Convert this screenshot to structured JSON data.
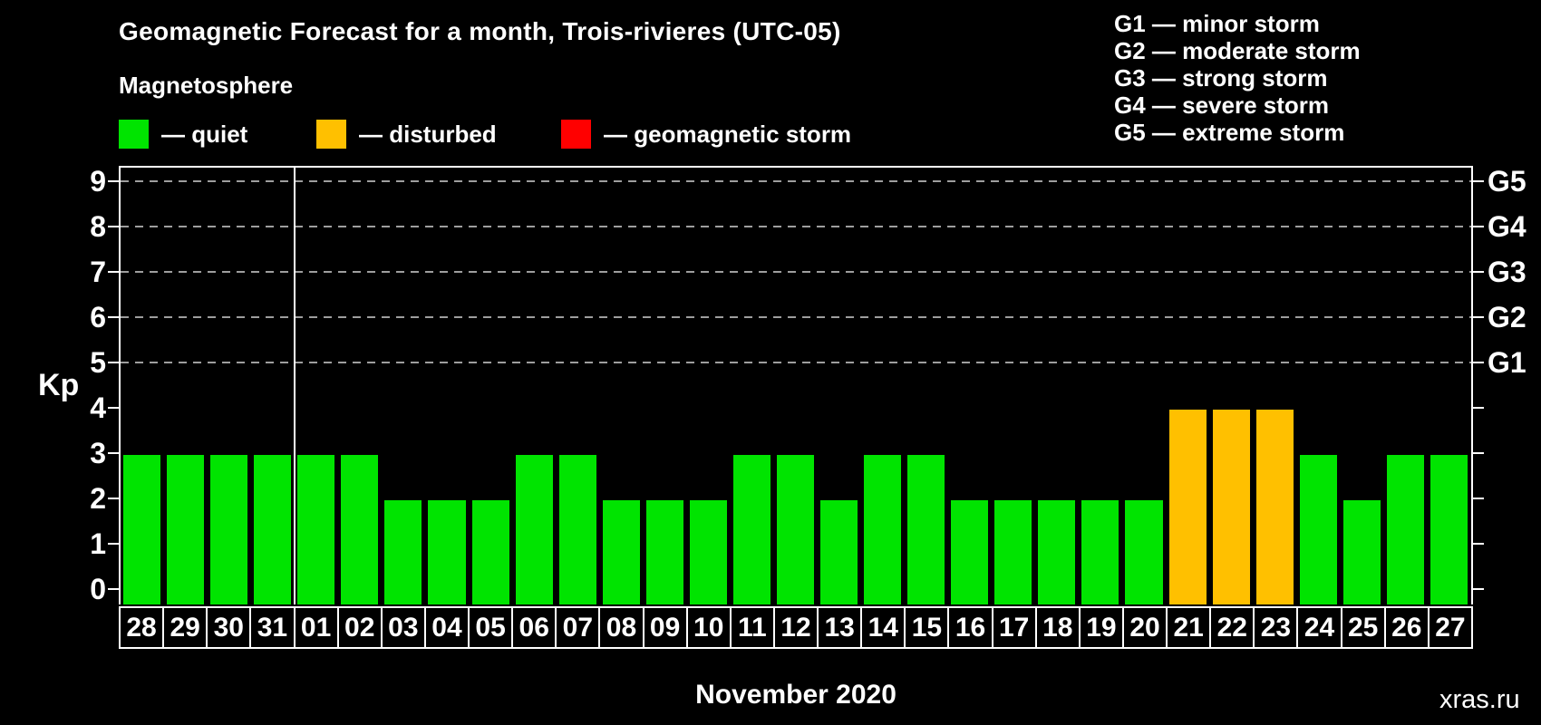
{
  "header": {
    "title": "Geomagnetic Forecast for a month, Trois-rivieres (UTC-05)",
    "subtitle": "Magnetosphere"
  },
  "legend": {
    "items": [
      {
        "label": "— quiet",
        "status": "quiet"
      },
      {
        "label": "— disturbed",
        "status": "disturbed"
      },
      {
        "label": "— geomagnetic storm",
        "status": "storm"
      }
    ]
  },
  "g_legend": [
    "G1 — minor storm",
    "G2 — moderate storm",
    "G3 — strong storm",
    "G4 — severe storm",
    "G5 — extreme storm"
  ],
  "axis": {
    "kp_label": "Kp",
    "left_ticks": [
      0,
      1,
      2,
      3,
      4,
      5,
      6,
      7,
      8,
      9
    ],
    "right_labels": [
      {
        "kp": 5,
        "label": "G1"
      },
      {
        "kp": 6,
        "label": "G2"
      },
      {
        "kp": 7,
        "label": "G3"
      },
      {
        "kp": 8,
        "label": "G4"
      },
      {
        "kp": 9,
        "label": "G5"
      }
    ]
  },
  "watermark": "xras.ru",
  "colors": {
    "quiet": "#00E400",
    "disturbed": "#FFC000",
    "storm": "#FF0000",
    "grid": "#9E9E9E",
    "axis": "#FFFFFF",
    "watermark": "#808080"
  },
  "chart_data": {
    "type": "bar",
    "title": "Geomagnetic Forecast for a month, Trois-rivieres (UTC-05)",
    "xlabel": "November 2020",
    "ylabel": "Kp",
    "ylim": [
      0,
      9
    ],
    "grid_on": true,
    "grid_levels": [
      5,
      6,
      7,
      8,
      9
    ],
    "month_separator_after_index": 3,
    "categories": [
      "28",
      "29",
      "30",
      "31",
      "01",
      "02",
      "03",
      "04",
      "05",
      "06",
      "07",
      "08",
      "09",
      "10",
      "11",
      "12",
      "13",
      "14",
      "15",
      "16",
      "17",
      "18",
      "19",
      "20",
      "21",
      "22",
      "23",
      "24",
      "25",
      "26",
      "27"
    ],
    "values": [
      3,
      3,
      3,
      3,
      3,
      3,
      2,
      2,
      2,
      3,
      3,
      2,
      2,
      2,
      3,
      3,
      2,
      3,
      3,
      2,
      2,
      2,
      2,
      2,
      4,
      4,
      4,
      3,
      2,
      3,
      3
    ],
    "statuses": [
      "quiet",
      "quiet",
      "quiet",
      "quiet",
      "quiet",
      "quiet",
      "quiet",
      "quiet",
      "quiet",
      "quiet",
      "quiet",
      "quiet",
      "quiet",
      "quiet",
      "quiet",
      "quiet",
      "quiet",
      "quiet",
      "quiet",
      "quiet",
      "quiet",
      "quiet",
      "quiet",
      "quiet",
      "disturbed",
      "disturbed",
      "disturbed",
      "quiet",
      "quiet",
      "quiet",
      "quiet"
    ]
  }
}
